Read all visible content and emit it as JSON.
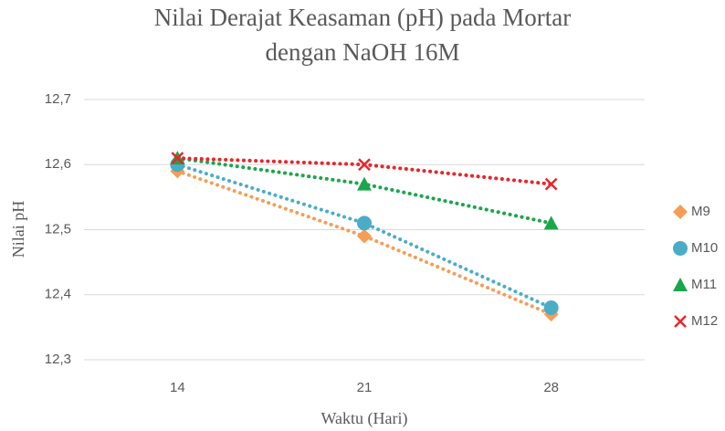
{
  "chart_data": {
    "type": "line",
    "title": [
      "Nilai Derajat Keasaman (pH) pada Mortar",
      "dengan NaOH 16M"
    ],
    "x_label": "Waktu (Hari)",
    "y_label": "Nilai pH",
    "categories": [
      "14",
      "21",
      "28"
    ],
    "series": [
      {
        "name": "M9",
        "color": "#f59d56",
        "marker": "diamond",
        "values": [
          12.59,
          12.49,
          12.37
        ]
      },
      {
        "name": "M10",
        "color": "#4bacc6",
        "marker": "circle",
        "values": [
          12.6,
          12.51,
          12.38
        ]
      },
      {
        "name": "M11",
        "color": "#1aa64a",
        "marker": "triangle",
        "values": [
          12.61,
          12.57,
          12.51
        ]
      },
      {
        "name": "M12",
        "color": "#e8262a",
        "marker": "x",
        "values": [
          12.61,
          12.6,
          12.57
        ]
      }
    ],
    "ylim": [
      12.3,
      12.7
    ],
    "yticks": [
      {
        "value": 12.3,
        "label": "12,3"
      },
      {
        "value": 12.4,
        "label": "12,4"
      },
      {
        "value": 12.5,
        "label": "12,5"
      },
      {
        "value": 12.6,
        "label": "12,6"
      },
      {
        "value": 12.7,
        "label": "12,7"
      }
    ],
    "grid": true,
    "legend": "right"
  }
}
